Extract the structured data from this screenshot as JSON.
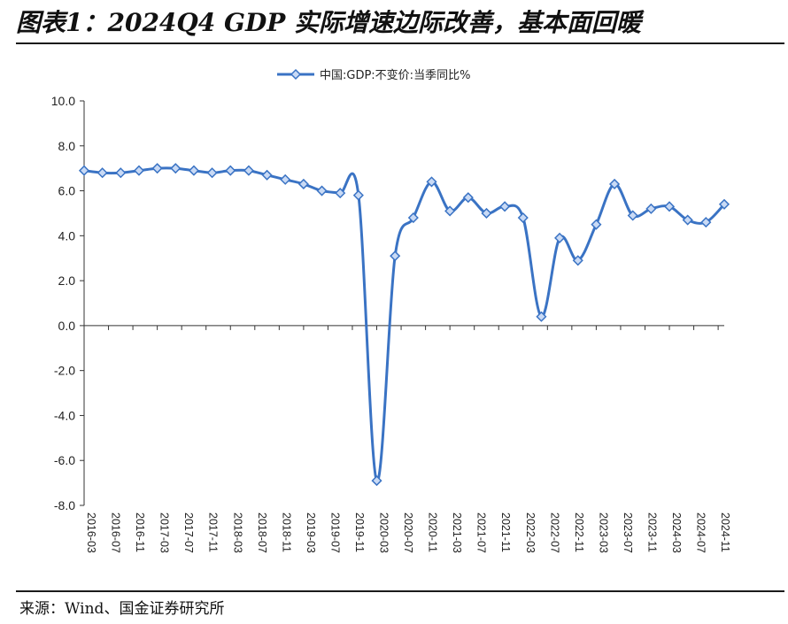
{
  "header": {
    "title": "图表1：2024Q4 GDP 实际增速边际改善，基本面回暖"
  },
  "footer": {
    "source": "来源：Wind、国金证券研究所"
  },
  "colors": {
    "series": "#3a73c4",
    "marker_fill": "#c9daf5",
    "axis": "#333333"
  },
  "chart_data": {
    "type": "line",
    "title": "",
    "xlabel": "",
    "ylabel": "",
    "ylim": [
      -8,
      10
    ],
    "yticks": [
      -8,
      -6,
      -4,
      -2,
      0,
      2,
      4,
      6,
      8,
      10
    ],
    "ytick_labels": [
      "-8.0",
      "-6.0",
      "-4.0",
      "-2.0",
      "0.0",
      "2.0",
      "4.0",
      "6.0",
      "8.0",
      "10.0"
    ],
    "legend": "top-center",
    "grid": false,
    "x_labels": [
      "2016-03",
      "2016-07",
      "2016-11",
      "2017-03",
      "2017-07",
      "2017-11",
      "2018-03",
      "2018-07",
      "2018-11",
      "2019-03",
      "2019-07",
      "2019-11",
      "2020-03",
      "2020-07",
      "2020-11",
      "2021-03",
      "2021-07",
      "2021-11",
      "2022-03",
      "2022-07",
      "2022-11",
      "2023-03",
      "2023-07",
      "2023-11",
      "2024-03",
      "2024-07",
      "2024-11"
    ],
    "series": [
      {
        "name": "中国:GDP:不变价:当季同比%",
        "points": [
          {
            "x": "2016-03",
            "y": 6.9
          },
          {
            "x": "2016-06",
            "y": 6.8
          },
          {
            "x": "2016-09",
            "y": 6.8
          },
          {
            "x": "2016-12",
            "y": 6.9
          },
          {
            "x": "2017-03",
            "y": 7.0
          },
          {
            "x": "2017-06",
            "y": 7.0
          },
          {
            "x": "2017-09",
            "y": 6.9
          },
          {
            "x": "2017-12",
            "y": 6.8
          },
          {
            "x": "2018-03",
            "y": 6.9
          },
          {
            "x": "2018-06",
            "y": 6.9
          },
          {
            "x": "2018-09",
            "y": 6.7
          },
          {
            "x": "2018-12",
            "y": 6.5
          },
          {
            "x": "2019-03",
            "y": 6.3
          },
          {
            "x": "2019-06",
            "y": 6.0
          },
          {
            "x": "2019-09",
            "y": 5.9
          },
          {
            "x": "2019-12",
            "y": 5.8
          },
          {
            "x": "2020-03",
            "y": -6.9
          },
          {
            "x": "2020-06",
            "y": 3.1
          },
          {
            "x": "2020-09",
            "y": 4.8
          },
          {
            "x": "2020-12",
            "y": 6.4
          },
          {
            "x": "2021-03",
            "y": 5.1
          },
          {
            "x": "2021-06",
            "y": 5.7
          },
          {
            "x": "2021-09",
            "y": 5.0
          },
          {
            "x": "2021-12",
            "y": 5.3
          },
          {
            "x": "2022-03",
            "y": 4.8
          },
          {
            "x": "2022-06",
            "y": 0.4
          },
          {
            "x": "2022-09",
            "y": 3.9
          },
          {
            "x": "2022-12",
            "y": 2.9
          },
          {
            "x": "2023-03",
            "y": 4.5
          },
          {
            "x": "2023-06",
            "y": 6.3
          },
          {
            "x": "2023-09",
            "y": 4.9
          },
          {
            "x": "2023-12",
            "y": 5.2
          },
          {
            "x": "2024-03",
            "y": 5.3
          },
          {
            "x": "2024-06",
            "y": 4.7
          },
          {
            "x": "2024-09",
            "y": 4.6
          },
          {
            "x": "2024-12",
            "y": 5.4
          }
        ]
      }
    ]
  }
}
